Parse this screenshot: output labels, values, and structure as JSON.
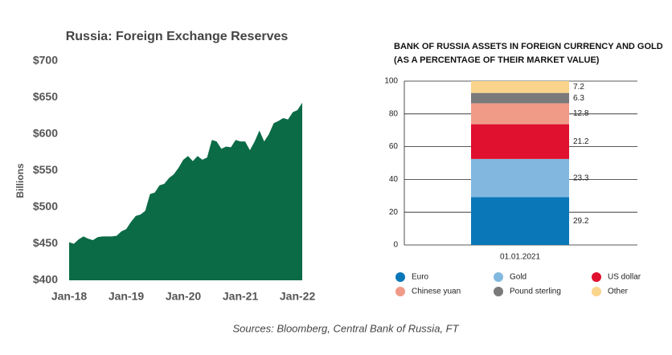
{
  "chart_data": [
    {
      "type": "area",
      "title": "Russia: Foreign Exchange Reserves",
      "y_label": "Billions",
      "color": "#0b6b47",
      "categories": [
        "Jan-18",
        null,
        null,
        null,
        null,
        null,
        null,
        null,
        null,
        null,
        null,
        null,
        "Jan-19",
        null,
        null,
        null,
        null,
        null,
        null,
        null,
        null,
        null,
        null,
        null,
        "Jan-20",
        null,
        null,
        null,
        null,
        null,
        null,
        null,
        null,
        null,
        null,
        null,
        "Jan-21",
        null,
        null,
        null,
        null,
        null,
        null,
        null,
        null,
        null,
        null,
        null,
        "Jan-22",
        null
      ],
      "values": [
        452,
        450,
        456,
        460,
        457,
        455,
        459,
        460,
        460,
        460,
        461,
        467,
        470,
        480,
        488,
        490,
        495,
        518,
        520,
        530,
        532,
        540,
        545,
        554,
        565,
        570,
        563,
        570,
        565,
        568,
        592,
        590,
        580,
        583,
        582,
        592,
        590,
        590,
        578,
        590,
        605,
        590,
        600,
        615,
        618,
        622,
        620,
        630,
        633,
        643
      ],
      "ylim": [
        400,
        700
      ],
      "yticks": [
        {
          "value": 400,
          "label": "$400"
        },
        {
          "value": 450,
          "label": "$450"
        },
        {
          "value": 500,
          "label": "$500"
        },
        {
          "value": 550,
          "label": "$550"
        },
        {
          "value": 600,
          "label": "$600"
        },
        {
          "value": 650,
          "label": "$650"
        },
        {
          "value": 700,
          "label": "$700"
        }
      ]
    },
    {
      "type": "stacked-bar",
      "title": "BANK OF RUSSIA ASSETS IN FOREIGN CURRENCY AND GOLD",
      "subtitle": "(AS A PERCENTAGE OF THEIR MARKET VALUE)",
      "categories": [
        "01.01.2021"
      ],
      "series": [
        {
          "name": "Euro",
          "color": "#0a78b8",
          "values": [
            29.2
          ]
        },
        {
          "name": "Gold",
          "color": "#82b8df",
          "values": [
            23.3
          ]
        },
        {
          "name": "US dollar",
          "color": "#e0102f",
          "values": [
            21.2
          ]
        },
        {
          "name": "Chinese yuan",
          "color": "#f09a88",
          "values": [
            12.8
          ]
        },
        {
          "name": "Pound sterling",
          "color": "#7a7a7a",
          "values": [
            6.3
          ]
        },
        {
          "name": "Other",
          "color": "#fbd48c",
          "values": [
            7.2
          ]
        }
      ],
      "ylim": [
        0,
        100
      ],
      "yticks": [
        0,
        20,
        40,
        60,
        80,
        100
      ],
      "grid": true
    }
  ],
  "source": "Sources: Bloomberg, Central Bank of Russia, FT"
}
